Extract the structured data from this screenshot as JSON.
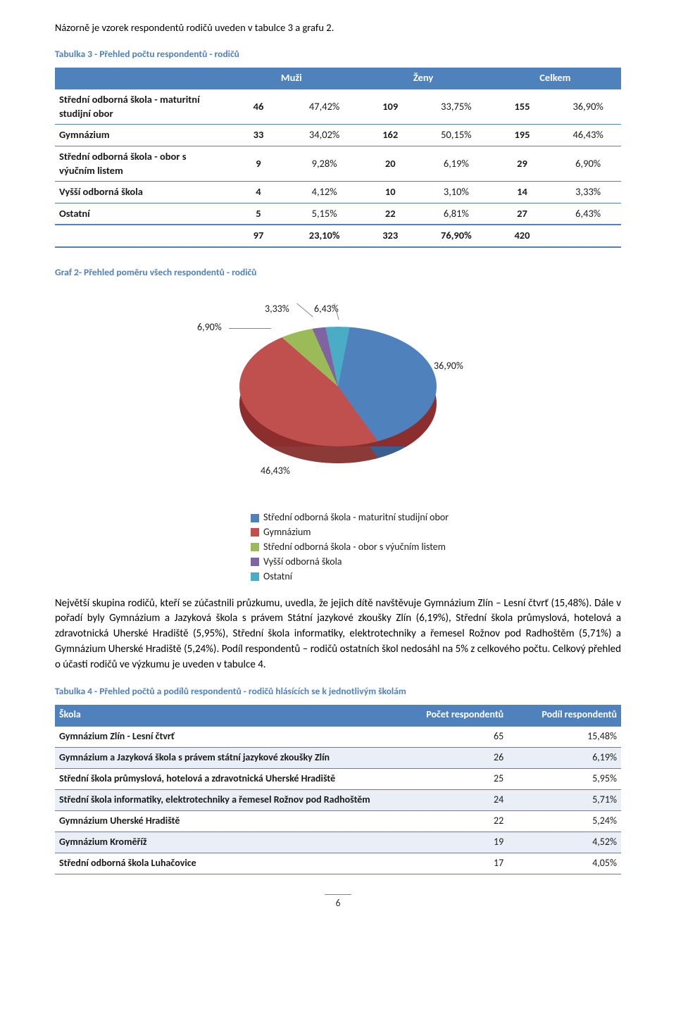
{
  "intro_text": "Názorně je vzorek respondentů rodičů uveden v tabulce 3 a grafu 2.",
  "table1_caption": "Tabulka 3 - Přehled počtu respondentů - rodičů",
  "table1": {
    "headers": [
      "",
      "Muži",
      "",
      "Ženy",
      "",
      "Celkem",
      ""
    ],
    "header_muzi": "Muži",
    "header_zeny": "Ženy",
    "header_celkem": "Celkem",
    "rows": [
      {
        "label": "Střední odborná škola - maturitní studijní obor",
        "c": [
          "46",
          "47,42%",
          "109",
          "33,75%",
          "155",
          "36,90%"
        ]
      },
      {
        "label": "Gymnázium",
        "c": [
          "33",
          "34,02%",
          "162",
          "50,15%",
          "195",
          "46,43%"
        ]
      },
      {
        "label": "Střední odborná škola - obor s výučním listem",
        "c": [
          "9",
          "9,28%",
          "20",
          "6,19%",
          "29",
          "6,90%"
        ]
      },
      {
        "label": "Vyšší odborná škola",
        "c": [
          "4",
          "4,12%",
          "10",
          "3,10%",
          "14",
          "3,33%"
        ]
      },
      {
        "label": "Ostatní",
        "c": [
          "5",
          "5,15%",
          "22",
          "6,81%",
          "27",
          "6,43%"
        ]
      }
    ],
    "total": {
      "label": "",
      "c": [
        "97",
        "23,10%",
        "323",
        "76,90%",
        "420",
        ""
      ]
    }
  },
  "chart_caption": "Graf 2- Přehled poměru všech respondentů - rodičů",
  "pie": {
    "slices": [
      {
        "label": "Střední odborná škola - maturitní studijní obor",
        "value": 36.9,
        "pct": "36,90%",
        "color": "#4f81bd",
        "side": "#3a5f8c"
      },
      {
        "label": "Gymnázium",
        "value": 46.43,
        "pct": "46,43%",
        "color": "#c0504d",
        "side": "#8c3a38"
      },
      {
        "label": "Střední odborná škola - obor s výučním listem",
        "value": 6.9,
        "pct": "6,90%",
        "color": "#9bbb59",
        "side": "#6f8a3f"
      },
      {
        "label": "Vyšší odborná škola",
        "value": 3.33,
        "pct": "3,33%",
        "color": "#8064a2",
        "side": "#5d4977"
      },
      {
        "label": "Ostatní",
        "value": 6.43,
        "pct": "6,43%",
        "color": "#4bacc6",
        "side": "#367e91"
      }
    ]
  },
  "body_text": "Největší skupina rodičů, kteří se zúčastnili průzkumu, uvedla, že jejich dítě navštěvuje Gymnázium Zlín – Lesní čtvrť (15,48%). Dále v pořadí byly Gymnázium a Jazyková škola s právem Státní jazykové zkoušky Zlín (6,19%), Střední škola průmyslová, hotelová a zdravotnická Uherské Hradiště (5,95%), Střední škola informatiky, elektrotechniky a řemesel Rožnov pod Radhoštěm (5,71%) a Gymnázium Uherské Hradiště (5,24%). Podíl respondentů – rodičů ostatních škol nedosáhl na 5% z celkového počtu. Celkový přehled o účasti rodičů ve výzkumu je uveden v tabulce 4.",
  "table2_caption": "Tabulka 4 - Přehled počtů a podílů respondentů - rodičů hlásících se k jednotlivým školám",
  "table2": {
    "h1": "Škola",
    "h2": "Počet respondentů",
    "h3": "Podíl respondentů",
    "rows": [
      {
        "s": "Gymnázium Zlín - Lesní čtvrť",
        "n": "65",
        "p": "15,48%"
      },
      {
        "s": "Gymnázium a Jazyková škola s právem státní jazykové zkoušky Zlín",
        "n": "26",
        "p": "6,19%"
      },
      {
        "s": "Střední škola průmyslová, hotelová a zdravotnická Uherské Hradiště",
        "n": "25",
        "p": "5,95%"
      },
      {
        "s": "Střední škola informatiky, elektrotechniky a řemesel Rožnov pod Radhoštěm",
        "n": "24",
        "p": "5,71%"
      },
      {
        "s": "Gymnázium Uherské Hradiště",
        "n": "22",
        "p": "5,24%"
      },
      {
        "s": "Gymnázium Kroměříž",
        "n": "19",
        "p": "4,52%"
      },
      {
        "s": "Střední odborná škola Luhačovice",
        "n": "17",
        "p": "4,05%"
      }
    ]
  },
  "page_number": "6",
  "colors": {
    "brand_blue": "#4f81bd"
  }
}
